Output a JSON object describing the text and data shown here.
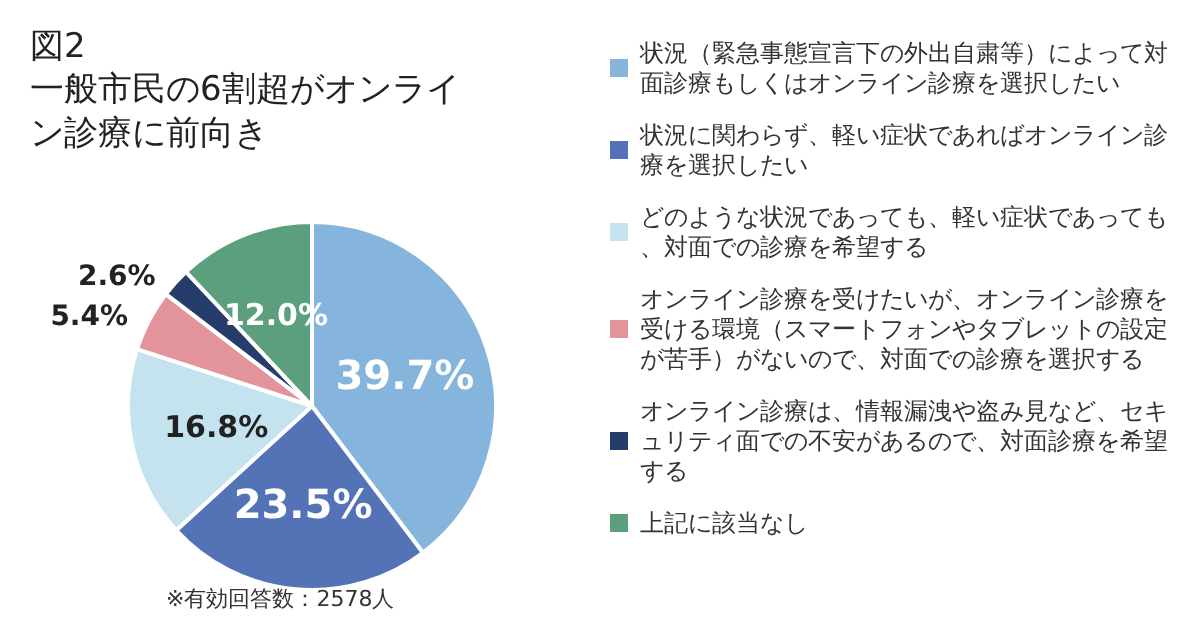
{
  "chart_data": {
    "type": "pie",
    "title": "図2",
    "subtitle": "一般市民の6割超がオンライン診療に前向き",
    "categories": [
      "状況（緊急事態宣言下の外出自粛等）によって対面診療もしくはオンライン診療を選択したい",
      "状況に関わらず、軽い症状であればオンライン診療を選択したい",
      "どのような状況であっても、軽い症状であっても、対面での診療を希望する",
      "オンライン診療を受けたいが、オンライン診療を受ける環境（スマートフォンやタブレットの設定が苦手）がないので、対面での診療を選択する",
      "オンライン診療は、情報漏洩や盗み見など、セキュリティ面での不安があるので、対面診療を希望する",
      "上記に該当なし"
    ],
    "values": [
      39.7,
      23.5,
      16.8,
      5.4,
      2.6,
      12.0
    ],
    "colors": [
      "#85b5dc",
      "#5373b6",
      "#c5e3ee",
      "#e3949b",
      "#263c6b",
      "#5b9f7f"
    ],
    "value_labels": [
      "39.7%",
      "23.5%",
      "16.8%",
      "5.4%",
      "2.6%",
      "12.0%"
    ],
    "legend": "right",
    "annotations": [
      "※有効回答数：2578人"
    ]
  }
}
